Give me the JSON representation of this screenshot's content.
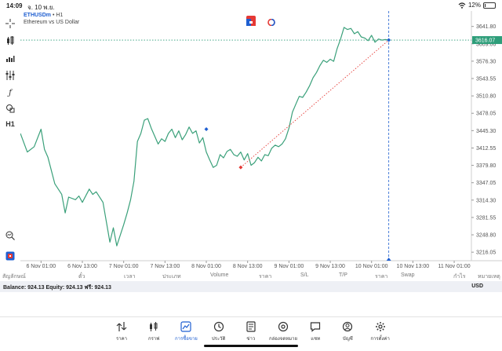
{
  "status": {
    "time": "14:09",
    "date": "จ. 10 พ.ย.",
    "battery": "12%",
    "battery_level": 0.12
  },
  "chart_header": {
    "symbol": "ETHUSDm",
    "timeframe": "• H1",
    "description": "Ethereum vs US Dollar"
  },
  "toolbar": {
    "timeframe_label": "H1"
  },
  "chart_data": {
    "type": "line",
    "symbol": "ETHUSDm",
    "timeframe": "H1",
    "y_ticks": [
      "3641.80",
      "3609.06",
      "3576.30",
      "3543.55",
      "3510.80",
      "3478.05",
      "3445.30",
      "3412.55",
      "3379.80",
      "3347.05",
      "3314.30",
      "3281.55",
      "3248.80",
      "3216.05"
    ],
    "y_tick_values": [
      3641.8,
      3609.06,
      3576.3,
      3543.55,
      3510.8,
      3478.05,
      3445.3,
      3412.55,
      3379.8,
      3347.05,
      3314.3,
      3281.55,
      3248.8,
      3216.05
    ],
    "ylim": [
      3200,
      3665
    ],
    "current_price": "3616.07",
    "current_price_value": 3616.07,
    "x_ticks": [
      "6 Nov 01:00",
      "6 Nov 13:00",
      "7 Nov 01:00",
      "7 Nov 13:00",
      "8 Nov 01:00",
      "8 Nov 13:00",
      "9 Nov 01:00",
      "9 Nov 13:00",
      "10 Nov 01:00",
      "10 Nov 13:00",
      "11 Nov 01:00"
    ],
    "x_tick_pos": [
      6,
      18,
      30,
      42,
      54,
      66,
      78,
      90,
      102,
      114,
      126
    ],
    "xlim": [
      0,
      131
    ],
    "series": [
      {
        "color": "#3aa07a",
        "x": [
          0,
          2,
          4,
          6,
          7,
          8,
          10,
          12,
          13,
          14,
          16,
          17,
          18,
          20,
          21,
          22,
          24,
          26,
          27,
          28,
          30,
          31,
          32,
          33,
          34,
          35,
          36,
          37,
          38,
          40,
          41,
          42,
          43,
          44,
          45,
          46,
          47,
          48,
          49,
          50,
          51,
          52,
          53,
          54,
          55,
          56,
          57,
          58,
          59,
          60,
          61,
          62,
          63,
          64,
          65,
          66,
          67,
          68,
          69,
          70,
          71,
          72,
          73,
          74,
          75,
          76,
          77,
          78,
          79,
          80,
          81,
          82,
          83,
          84,
          85,
          86,
          87,
          88,
          89,
          90,
          91,
          92,
          93,
          94,
          95,
          96,
          97,
          98,
          99,
          100,
          101,
          102,
          103,
          104,
          105,
          106,
          107
        ],
        "y": [
          3440,
          3405,
          3415,
          3448,
          3410,
          3395,
          3345,
          3325,
          3290,
          3320,
          3315,
          3322,
          3310,
          3335,
          3325,
          3330,
          3310,
          3235,
          3262,
          3228,
          3268,
          3290,
          3315,
          3350,
          3425,
          3440,
          3465,
          3468,
          3450,
          3420,
          3430,
          3425,
          3440,
          3448,
          3432,
          3445,
          3428,
          3438,
          3452,
          3440,
          3445,
          3422,
          3432,
          3405,
          3390,
          3376,
          3380,
          3400,
          3394,
          3406,
          3410,
          3400,
          3397,
          3405,
          3390,
          3402,
          3380,
          3385,
          3395,
          3388,
          3400,
          3398,
          3412,
          3418,
          3415,
          3420,
          3430,
          3450,
          3480,
          3495,
          3510,
          3508,
          3518,
          3530,
          3545,
          3555,
          3568,
          3578,
          3574,
          3580,
          3576,
          3600,
          3618,
          3640,
          3636,
          3638,
          3628,
          3632,
          3622,
          3620,
          3615,
          3625,
          3612,
          3618,
          3616,
          3617,
          3616
        ]
      }
    ],
    "trade_line": {
      "from": {
        "x": 64,
        "y": 3376
      },
      "to": {
        "x": 107,
        "y": 3616.07
      }
    },
    "markers": [
      {
        "x": 54,
        "y": 3448,
        "color": "#1f5fd1"
      },
      {
        "x": 64,
        "y": 3376,
        "color": "#e53935"
      },
      {
        "x": 107,
        "y": 3616.07,
        "color": "#1f5fd1"
      }
    ],
    "crosshair_x": 107,
    "grid": false,
    "line_color": "#3aa07a",
    "price_label_color": "#2e9e7a"
  },
  "table": {
    "columns": [
      "สัญลักษณ์",
      "ตั๋ว",
      "เวลา",
      "ประเภท",
      "Volume",
      "ราคา",
      "S/L",
      "T/P",
      "ราคา",
      "Swap",
      "กำไร",
      "หมายเหตุ"
    ]
  },
  "account": {
    "summary": "Balance: 924.13 Equity: 924.13 ฟรี: 924.13",
    "currency": "USD"
  },
  "nav": [
    {
      "label": "ราคา",
      "icon": "quotes-icon"
    },
    {
      "label": "กราฟ",
      "icon": "candles-icon"
    },
    {
      "label": "การซื้อขาย",
      "icon": "trade-icon",
      "active": true
    },
    {
      "label": "ประวัติ",
      "icon": "history-icon"
    },
    {
      "label": "ข่าว",
      "icon": "news-icon"
    },
    {
      "label": "กล่องจดหมาย",
      "icon": "mailbox-icon"
    },
    {
      "label": "แชท",
      "icon": "chat-icon"
    },
    {
      "label": "บัญชี",
      "icon": "account-icon"
    },
    {
      "label": "การตั้งค่า",
      "icon": "settings-icon"
    }
  ],
  "colors": {
    "accent": "#1f5fd1",
    "line": "#3aa07a",
    "sell": "#e53935"
  }
}
